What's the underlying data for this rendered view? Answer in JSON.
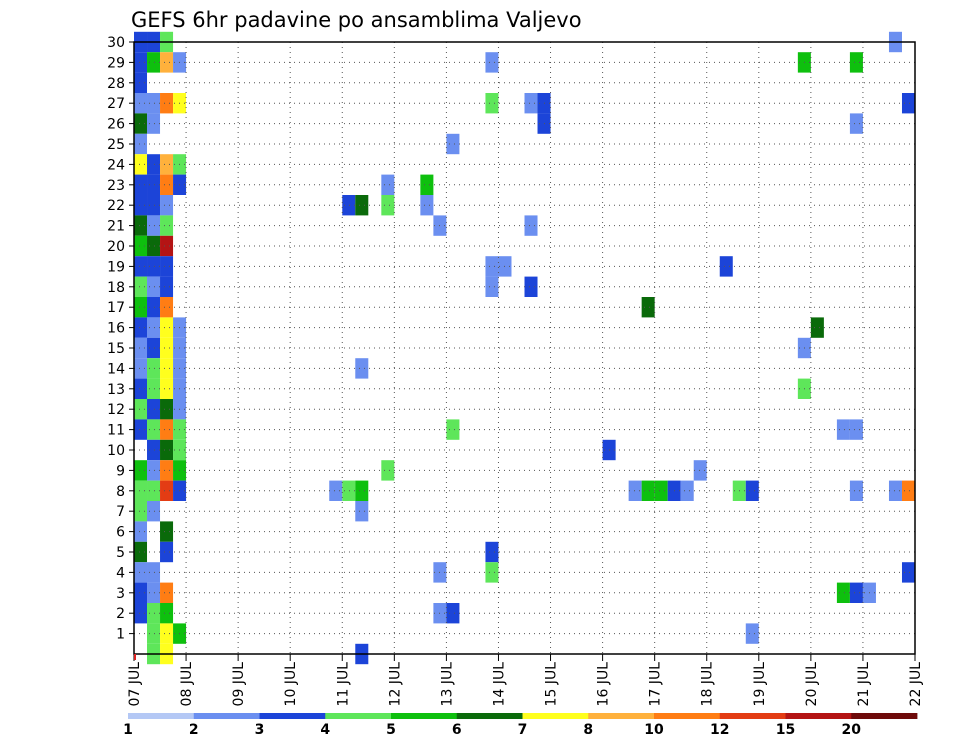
{
  "chart_data": {
    "type": "heatmap",
    "title": "GEFS 6hr padavine po ansamblima Valjevo",
    "xlabel": "",
    "ylabel": "",
    "x_ticks": [
      "07 JUL",
      "08 JUL",
      "09 JUL",
      "10 JUL",
      "11 JUL",
      "12 JUL",
      "13 JUL",
      "14 JUL",
      "15 JUL",
      "16 JUL",
      "17 JUL",
      "18 JUL",
      "19 JUL",
      "20 JUL",
      "21 JUL",
      "22 JUL"
    ],
    "x_range": [
      "07 JUL 00Z",
      "22 JUL 00Z"
    ],
    "step_hours": 6,
    "y_range": [
      0,
      30
    ],
    "y_ticks": [
      1,
      2,
      3,
      4,
      5,
      6,
      7,
      8,
      9,
      10,
      11,
      12,
      13,
      14,
      15,
      16,
      17,
      18,
      19,
      20,
      21,
      22,
      23,
      24,
      25,
      26,
      27,
      28,
      29,
      30
    ],
    "grid": "dotted",
    "legend": "bottom",
    "legend_labels": [
      "1",
      "2",
      "3",
      "4",
      "5",
      "6",
      "7",
      "8",
      "10",
      "12",
      "15",
      "20"
    ],
    "color_classes": [
      "#b4c8f5",
      "#6b8ff0",
      "#1c44d8",
      "#5ee65a",
      "#0ec00e",
      "#0a6a0a",
      "#ffff1e",
      "#ffb13c",
      "#ff7d14",
      "#e33c14",
      "#b41414",
      "#6e0a0a"
    ],
    "cells_columns": [
      "slot",
      "member",
      "class"
    ],
    "cells": [
      [
        1,
        30,
        2
      ],
      [
        1,
        29,
        2
      ],
      [
        1,
        28,
        2
      ],
      [
        1,
        27,
        1
      ],
      [
        1,
        26,
        5
      ],
      [
        1,
        25,
        1
      ],
      [
        1,
        24,
        6
      ],
      [
        1,
        23,
        2
      ],
      [
        1,
        22,
        2
      ],
      [
        1,
        21,
        5
      ],
      [
        1,
        20,
        4
      ],
      [
        1,
        19,
        2
      ],
      [
        1,
        18,
        3
      ],
      [
        1,
        17,
        4
      ],
      [
        1,
        16,
        2
      ],
      [
        1,
        15,
        1
      ],
      [
        1,
        14,
        1
      ],
      [
        1,
        13,
        2
      ],
      [
        1,
        12,
        3
      ],
      [
        1,
        11,
        2
      ],
      [
        1,
        9,
        4
      ],
      [
        1,
        8,
        3
      ],
      [
        1,
        7,
        3
      ],
      [
        1,
        6,
        1
      ],
      [
        1,
        5,
        5
      ],
      [
        1,
        4,
        1
      ],
      [
        1,
        3,
        2
      ],
      [
        1,
        2,
        2
      ],
      [
        2,
        30,
        2
      ],
      [
        2,
        29,
        4
      ],
      [
        2,
        27,
        1
      ],
      [
        2,
        26,
        1
      ],
      [
        2,
        24,
        2
      ],
      [
        2,
        23,
        2
      ],
      [
        2,
        22,
        2
      ],
      [
        2,
        21,
        1
      ],
      [
        2,
        20,
        5
      ],
      [
        2,
        19,
        2
      ],
      [
        2,
        18,
        1
      ],
      [
        2,
        17,
        2
      ],
      [
        2,
        16,
        1
      ],
      [
        2,
        15,
        2
      ],
      [
        2,
        14,
        3
      ],
      [
        2,
        13,
        3
      ],
      [
        2,
        12,
        2
      ],
      [
        2,
        11,
        3
      ],
      [
        2,
        10,
        2
      ],
      [
        2,
        9,
        1
      ],
      [
        2,
        8,
        3
      ],
      [
        2,
        7,
        1
      ],
      [
        2,
        4,
        1
      ],
      [
        2,
        3,
        1
      ],
      [
        2,
        2,
        3
      ],
      [
        2,
        1,
        3
      ],
      [
        2,
        0,
        3
      ],
      [
        3,
        30,
        3
      ],
      [
        3,
        29,
        7
      ],
      [
        3,
        27,
        8
      ],
      [
        3,
        24,
        7
      ],
      [
        3,
        23,
        8
      ],
      [
        3,
        22,
        1
      ],
      [
        3,
        21,
        3
      ],
      [
        3,
        20,
        10
      ],
      [
        3,
        19,
        2
      ],
      [
        3,
        18,
        2
      ],
      [
        3,
        17,
        8
      ],
      [
        3,
        16,
        6
      ],
      [
        3,
        15,
        6
      ],
      [
        3,
        14,
        6
      ],
      [
        3,
        13,
        6
      ],
      [
        3,
        12,
        5
      ],
      [
        3,
        11,
        8
      ],
      [
        3,
        10,
        5
      ],
      [
        3,
        9,
        8
      ],
      [
        3,
        8,
        9
      ],
      [
        3,
        6,
        5
      ],
      [
        3,
        5,
        2
      ],
      [
        3,
        3,
        8
      ],
      [
        3,
        2,
        4
      ],
      [
        3,
        1,
        6
      ],
      [
        3,
        0,
        6
      ],
      [
        4,
        29,
        1
      ],
      [
        4,
        27,
        6
      ],
      [
        4,
        24,
        3
      ],
      [
        4,
        23,
        2
      ],
      [
        4,
        16,
        1
      ],
      [
        4,
        15,
        1
      ],
      [
        4,
        14,
        1
      ],
      [
        4,
        13,
        1
      ],
      [
        4,
        12,
        1
      ],
      [
        4,
        11,
        3
      ],
      [
        4,
        10,
        3
      ],
      [
        4,
        9,
        4
      ],
      [
        4,
        8,
        2
      ],
      [
        4,
        1,
        4
      ],
      [
        16,
        8,
        1
      ],
      [
        17,
        22,
        2
      ],
      [
        17,
        8,
        3
      ],
      [
        18,
        22,
        5
      ],
      [
        18,
        8,
        4
      ],
      [
        18,
        14,
        1
      ],
      [
        18,
        7,
        1
      ],
      [
        18,
        0,
        2
      ],
      [
        20,
        23,
        1
      ],
      [
        20,
        22,
        3
      ],
      [
        20,
        9,
        3
      ],
      [
        23,
        23,
        4
      ],
      [
        23,
        22,
        1
      ],
      [
        24,
        21,
        1
      ],
      [
        24,
        4,
        1
      ],
      [
        24,
        2,
        1
      ],
      [
        25,
        25,
        1
      ],
      [
        25,
        11,
        3
      ],
      [
        25,
        2,
        2
      ],
      [
        28,
        29,
        1
      ],
      [
        28,
        27,
        3
      ],
      [
        28,
        19,
        1
      ],
      [
        28,
        18,
        1
      ],
      [
        28,
        5,
        2
      ],
      [
        28,
        4,
        3
      ],
      [
        29,
        19,
        1
      ],
      [
        31,
        27,
        1
      ],
      [
        31,
        21,
        1
      ],
      [
        31,
        18,
        2
      ],
      [
        32,
        27,
        2
      ],
      [
        32,
        26,
        2
      ],
      [
        37,
        10,
        2
      ],
      [
        39,
        8,
        1
      ],
      [
        40,
        17,
        5
      ],
      [
        40,
        8,
        4
      ],
      [
        41,
        8,
        4
      ],
      [
        42,
        8,
        2
      ],
      [
        43,
        8,
        1
      ],
      [
        44,
        9,
        1
      ],
      [
        46,
        19,
        2
      ],
      [
        47,
        8,
        3
      ],
      [
        48,
        8,
        2
      ],
      [
        48,
        1,
        1
      ],
      [
        52,
        29,
        4
      ],
      [
        52,
        15,
        1
      ],
      [
        52,
        13,
        3
      ],
      [
        53,
        16,
        5
      ],
      [
        55,
        11,
        1
      ],
      [
        55,
        3,
        4
      ],
      [
        56,
        29,
        4
      ],
      [
        56,
        26,
        1
      ],
      [
        56,
        11,
        1
      ],
      [
        56,
        8,
        1
      ],
      [
        56,
        3,
        2
      ],
      [
        57,
        3,
        1
      ],
      [
        59,
        30,
        1
      ],
      [
        59,
        8,
        1
      ],
      [
        60,
        27,
        2
      ],
      [
        60,
        8,
        8
      ],
      [
        60,
        4,
        2
      ]
    ]
  }
}
